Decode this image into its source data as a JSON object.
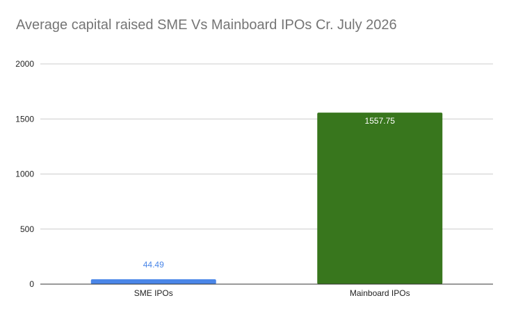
{
  "chart_data": {
    "type": "bar",
    "title": "Average capital raised SME Vs Mainboard IPOs Cr. July 2026",
    "xlabel": "",
    "ylabel": "",
    "categories": [
      "SME IPOs",
      "Mainboard IPOs"
    ],
    "values": [
      44.49,
      1557.75
    ],
    "value_labels": [
      "44.49",
      "1557.75"
    ],
    "bar_colors": [
      "#4a86e8",
      "#38761d"
    ],
    "label_colors": [
      "#4a86e8",
      "#ffffff"
    ],
    "ylim": [
      0,
      2000
    ],
    "yticks": [
      0,
      500,
      1000,
      1500,
      2000
    ],
    "ytick_labels": [
      "0",
      "500",
      "1000",
      "1500",
      "2000"
    ],
    "grid": true,
    "legend": "none"
  }
}
